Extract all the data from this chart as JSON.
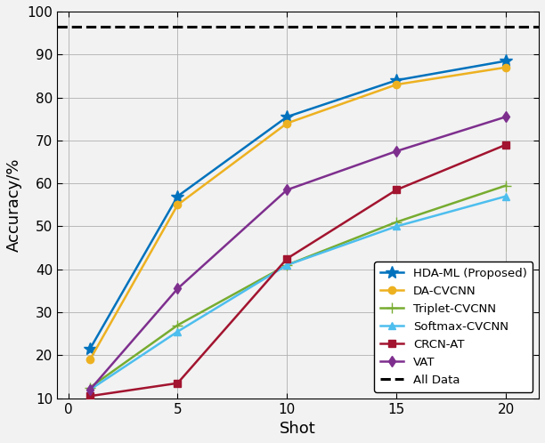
{
  "shots": [
    1,
    5,
    10,
    15,
    20
  ],
  "series": {
    "HDA-ML (Proposed)": {
      "values": [
        21.5,
        57.0,
        75.5,
        84.0,
        88.5
      ],
      "color": "#0072bd",
      "marker": "*",
      "markersize": 10,
      "linewidth": 1.8
    },
    "DA-CVCNN": {
      "values": [
        19.0,
        55.0,
        74.0,
        83.0,
        87.0
      ],
      "color": "#edb120",
      "marker": "o",
      "markersize": 6,
      "linewidth": 1.8
    },
    "Triplet-CVCNN": {
      "values": [
        12.5,
        27.0,
        41.0,
        51.0,
        59.5
      ],
      "color": "#77ac30",
      "marker": "+",
      "markersize": 9,
      "linewidth": 1.8
    },
    "Softmax-CVCNN": {
      "values": [
        12.0,
        25.5,
        41.0,
        50.0,
        57.0
      ],
      "color": "#4dbeee",
      "marker": "^",
      "markersize": 6,
      "linewidth": 1.8
    },
    "CRCN-AT": {
      "values": [
        10.5,
        13.5,
        42.5,
        58.5,
        69.0
      ],
      "color": "#a2142f",
      "marker": "s",
      "markersize": 6,
      "linewidth": 1.8
    },
    "VAT": {
      "values": [
        12.0,
        35.5,
        58.5,
        67.5,
        75.5
      ],
      "color": "#7e2f8e",
      "marker": "d",
      "markersize": 6,
      "linewidth": 1.8
    }
  },
  "all_data_value": 96.5,
  "xlabel": "Shot",
  "ylabel": "Accuracy/%",
  "ylim": [
    10,
    100
  ],
  "xlim": [
    -0.5,
    21.5
  ],
  "yticks": [
    10,
    20,
    30,
    40,
    50,
    60,
    70,
    80,
    90,
    100
  ],
  "xticks": [
    0,
    5,
    10,
    15,
    20
  ],
  "legend_loc": "lower right",
  "grid": true,
  "background_color": "#f2f2f2",
  "axes_bg_color": "#f2f2f2"
}
